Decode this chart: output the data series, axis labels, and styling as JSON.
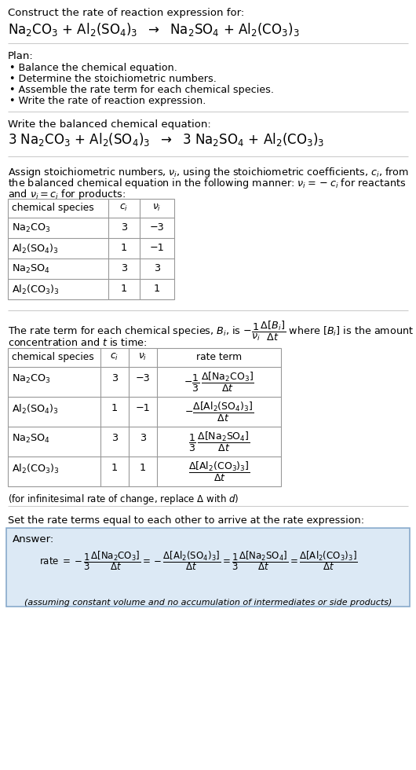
{
  "title_line1": "Construct the rate of reaction expression for:",
  "plan_header": "Plan:",
  "plan_items": [
    "• Balance the chemical equation.",
    "• Determine the stoichiometric numbers.",
    "• Assemble the rate term for each chemical species.",
    "• Write the rate of reaction expression."
  ],
  "balanced_header": "Write the balanced chemical equation:",
  "stoich_para_line1": "Assign stoichiometric numbers, νᵢ, using the stoichiometric coefficients, cᵢ, from",
  "stoich_para_line2": "the balanced chemical equation in the following manner: νᵢ = −cᵢ for reactants",
  "stoich_para_line3": "and νᵢ = cᵢ for products:",
  "table1_species": [
    "Na₂CO₃",
    "Al₂(SO₄)₃",
    "Na₂SO₄",
    "Al₂(CO₃)₃"
  ],
  "table1_ci": [
    "3",
    "1",
    "3",
    "1"
  ],
  "table1_nu": [
    "−3",
    "−1",
    "3",
    "1"
  ],
  "rate_para_line2": "concentration and t is time:",
  "table2_species": [
    "Na₂CO₃",
    "Al₂(SO₄)₃",
    "Na₂SO₄",
    "Al₂(CO₃)₃"
  ],
  "table2_ci": [
    "3",
    "1",
    "3",
    "1"
  ],
  "table2_nu": [
    "−3",
    "−1",
    "3",
    "1"
  ],
  "infinitesimal_note": "(for infinitesimal rate of change, replace Δ with d)",
  "set_rate_header": "Set the rate terms equal to each other to arrive at the rate expression:",
  "answer_label": "Answer:",
  "answer_note": "(assuming constant volume and no accumulation of intermediates or side products)",
  "answer_bg_color": "#dce9f5",
  "answer_border_color": "#88aacc",
  "bg_color": "#ffffff",
  "separator_color": "#cccccc",
  "table_border_color": "#999999"
}
